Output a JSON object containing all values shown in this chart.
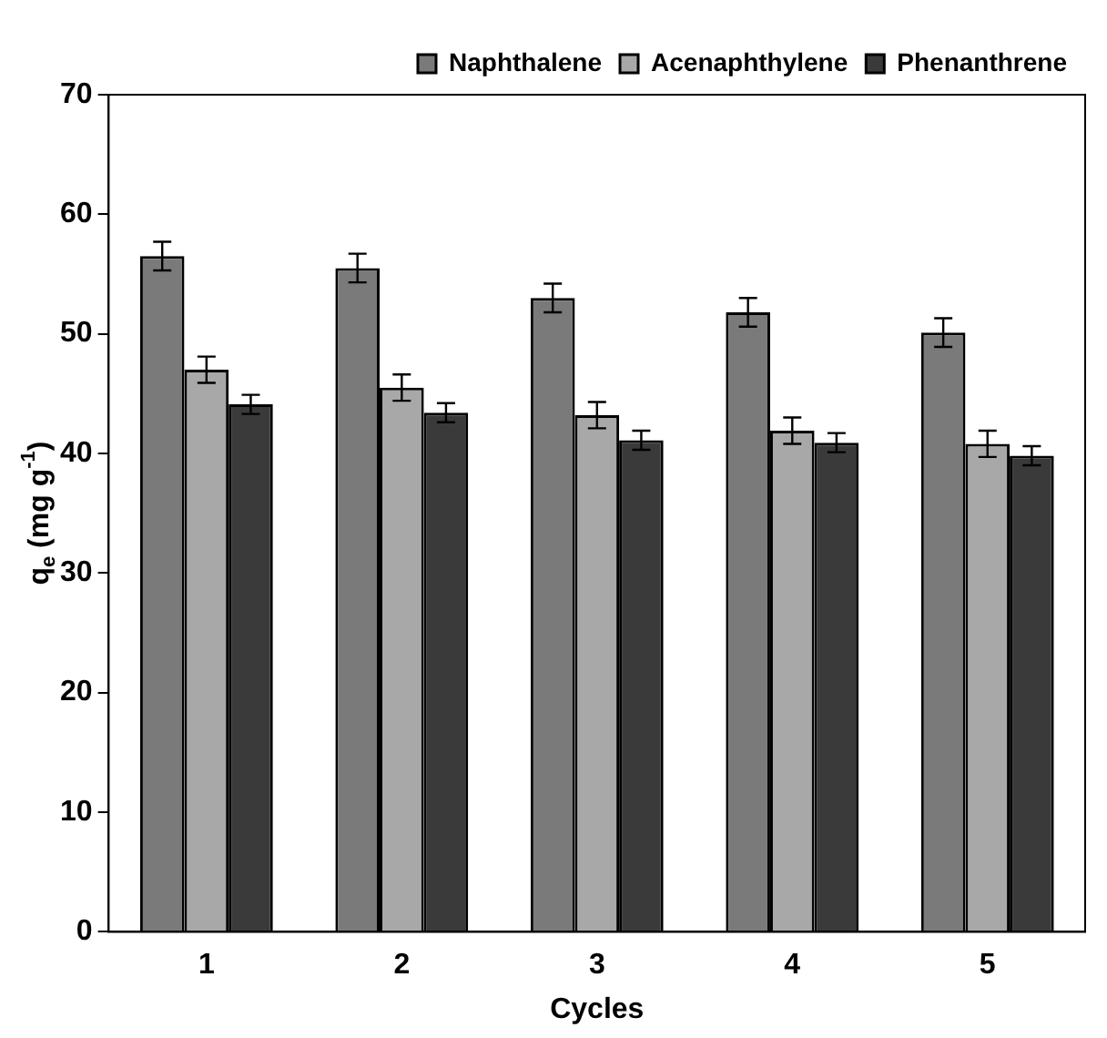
{
  "chart_data": {
    "type": "bar",
    "xlabel": "Cycles",
    "ylabel": "q$_{e}$ (mg g$^{-1}$)",
    "categories": [
      "1",
      "2",
      "3",
      "4",
      "5"
    ],
    "series": [
      {
        "name": "Naphthalene",
        "color": "#7a7a7a",
        "values": [
          56.5,
          55.5,
          53,
          51.8,
          50.1
        ],
        "errors": [
          1.2,
          1.2,
          1.2,
          1.2,
          1.2
        ]
      },
      {
        "name": "Acenaphthylene",
        "color": "#a8a8a8",
        "values": [
          47,
          45.5,
          43.2,
          41.9,
          40.8
        ],
        "errors": [
          1.1,
          1.1,
          1.1,
          1.1,
          1.1
        ]
      },
      {
        "name": "Phenanthrene",
        "color": "#3a3a3a",
        "values": [
          44.1,
          43.4,
          41.1,
          40.9,
          39.8
        ],
        "errors": [
          0.8,
          0.8,
          0.8,
          0.8,
          0.8
        ]
      }
    ],
    "ylim": [
      0,
      70
    ],
    "yticks": [
      0,
      10,
      20,
      30,
      40,
      50,
      60,
      70
    ],
    "grid": false,
    "legend": "top right"
  }
}
